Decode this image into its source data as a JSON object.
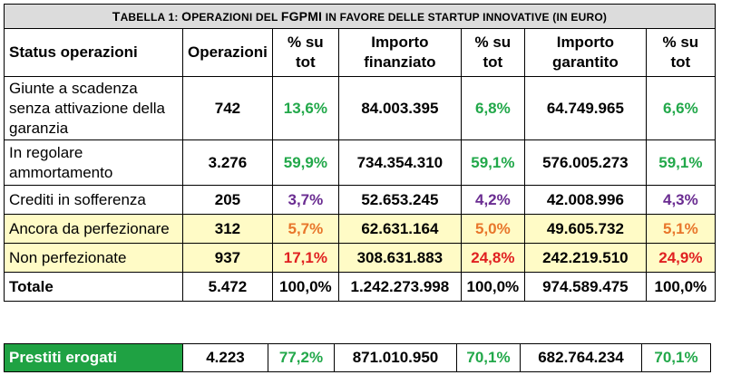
{
  "table": {
    "caption": {
      "prefix_T": "T",
      "prefix": "ABELLA 1: ",
      "part_O": "O",
      "part_per": "PERAZIONI DEL ",
      "fgpmi": "FGPMI",
      "rest": " IN FAVORE DELLE STARTUP INNOVATIVE (IN EURO)"
    },
    "headers": [
      "Status operazioni",
      "Operazioni",
      "% su tot",
      "Importo finanziato",
      "% su tot",
      "Importo garantito",
      "% su tot"
    ],
    "rows": [
      {
        "label": "Giunte a scadenza senza attivazione della garanzia",
        "operazioni": "742",
        "pct1": "13,6%",
        "finanziato": "84.003.395",
        "pct2": "6,8%",
        "garantito": "64.749.965",
        "pct3": "6,6%"
      },
      {
        "label": "In regolare ammortamento",
        "operazioni": "3.276",
        "pct1": "59,9%",
        "finanziato": "734.354.310",
        "pct2": "59,1%",
        "garantito": "576.005.273",
        "pct3": "59,1%"
      },
      {
        "label": "Crediti in sofferenza",
        "operazioni": "205",
        "pct1": "3,7%",
        "finanziato": "52.653.245",
        "pct2": "4,2%",
        "garantito": "42.008.996",
        "pct3": "4,3%"
      },
      {
        "label": "Ancora da perfezionare",
        "operazioni": "312",
        "pct1": "5,7%",
        "finanziato": "62.631.164",
        "pct2": "5,0%",
        "garantito": "49.605.732",
        "pct3": "5,1%"
      },
      {
        "label": "Non perfezionate",
        "operazioni": "937",
        "pct1": "17,1%",
        "finanziato": "308.631.883",
        "pct2": "24,8%",
        "garantito": "242.219.510",
        "pct3": "24,9%"
      }
    ],
    "total": {
      "label": "Totale",
      "operazioni": "5.472",
      "pct1": "100,0%",
      "finanziato": "1.242.273.998",
      "pct2": "100,0%",
      "garantito": "974.589.475",
      "pct3": "100,0%"
    }
  },
  "prestiti": {
    "label": "Prestiti erogati",
    "operazioni": "4.223",
    "pct1": "77,2%",
    "finanziato": "871.010.950",
    "pct2": "70,1%",
    "garantito": "682.764.234",
    "pct3": "70,1%"
  },
  "colors": {
    "green": "#22a84a",
    "purple": "#6a2c91",
    "orange": "#e8762b",
    "red": "#e02020",
    "yellow_bg": "#fffbc6",
    "caption_bg": "#dcdcdc",
    "prestiti_bg": "#1fa243"
  }
}
